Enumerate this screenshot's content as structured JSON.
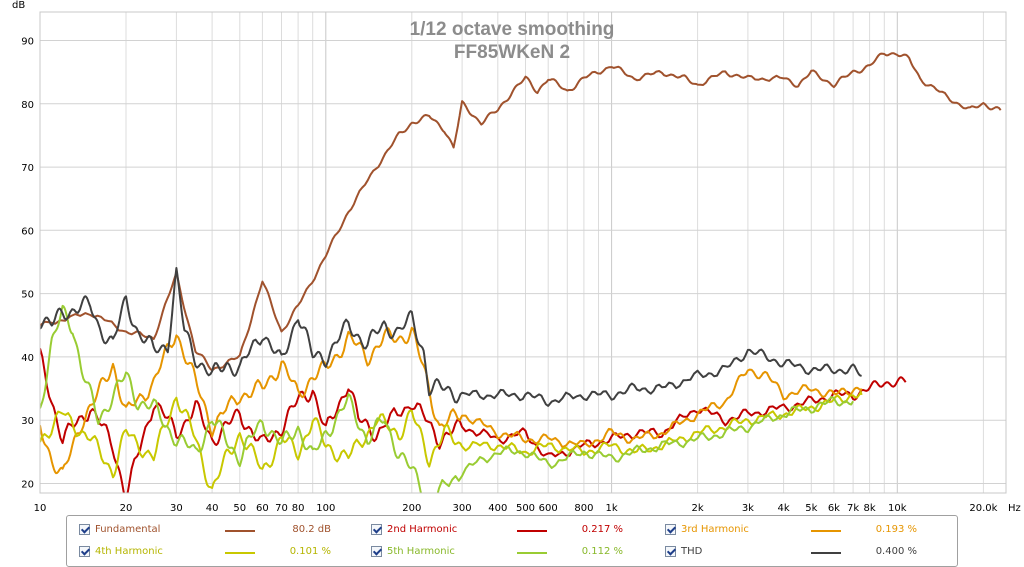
{
  "chart_data": {
    "type": "line",
    "title": "1/12 octave smoothing",
    "subtitle": "FF85WKeN 2",
    "ylabel": "dB",
    "xlabel": "",
    "x_scale": "log",
    "x_unit": "Hz",
    "xlim": [
      10,
      24000
    ],
    "ylim": [
      18.5,
      94.5
    ],
    "grid": true,
    "y_ticks": [
      20,
      30,
      40,
      50,
      60,
      70,
      80,
      90
    ],
    "x_ticks": [
      {
        "v": 10,
        "label": "10"
      },
      {
        "v": 20,
        "label": "20"
      },
      {
        "v": 30,
        "label": "30"
      },
      {
        "v": 40,
        "label": "40"
      },
      {
        "v": 50,
        "label": "50"
      },
      {
        "v": 60,
        "label": "60"
      },
      {
        "v": 70,
        "label": "70"
      },
      {
        "v": 80,
        "label": "80"
      },
      {
        "v": 100,
        "label": "100"
      },
      {
        "v": 200,
        "label": "200"
      },
      {
        "v": 300,
        "label": "300"
      },
      {
        "v": 400,
        "label": "400"
      },
      {
        "v": 500,
        "label": "500"
      },
      {
        "v": 600,
        "label": "600"
      },
      {
        "v": 800,
        "label": "800"
      },
      {
        "v": 1000,
        "label": "1k"
      },
      {
        "v": 2000,
        "label": "2k"
      },
      {
        "v": 3000,
        "label": "3k"
      },
      {
        "v": 4000,
        "label": "4k"
      },
      {
        "v": 5000,
        "label": "5k"
      },
      {
        "v": 6000,
        "label": "6k"
      },
      {
        "v": 7000,
        "label": "7k"
      },
      {
        "v": 8000,
        "label": "8k"
      },
      {
        "v": 10000,
        "label": "10k"
      },
      {
        "v": 20000,
        "label": "20.0k"
      }
    ],
    "x_unit_label": "Hz",
    "legend_position": "bottom",
    "series": [
      {
        "name": "Fundamental",
        "value": "80.2 dB",
        "color": "#a0522d",
        "points": [
          [
            10,
            45
          ],
          [
            15,
            47
          ],
          [
            20,
            44
          ],
          [
            25,
            43
          ],
          [
            30,
            53
          ],
          [
            35,
            41
          ],
          [
            40,
            38
          ],
          [
            50,
            40
          ],
          [
            60,
            52
          ],
          [
            70,
            44
          ],
          [
            80,
            48
          ],
          [
            100,
            56
          ],
          [
            120,
            63
          ],
          [
            150,
            70
          ],
          [
            180,
            75
          ],
          [
            200,
            77
          ],
          [
            230,
            78
          ],
          [
            260,
            76
          ],
          [
            280,
            73
          ],
          [
            300,
            80
          ],
          [
            350,
            77
          ],
          [
            400,
            79
          ],
          [
            450,
            82
          ],
          [
            500,
            84
          ],
          [
            550,
            82
          ],
          [
            600,
            84
          ],
          [
            700,
            82
          ],
          [
            800,
            84
          ],
          [
            1000,
            86
          ],
          [
            1200,
            84
          ],
          [
            1500,
            85
          ],
          [
            1800,
            84
          ],
          [
            2000,
            83
          ],
          [
            2500,
            85
          ],
          [
            3000,
            84
          ],
          [
            4000,
            84
          ],
          [
            4500,
            83
          ],
          [
            5000,
            85
          ],
          [
            6000,
            83
          ],
          [
            7000,
            85
          ],
          [
            8000,
            86
          ],
          [
            9000,
            88
          ],
          [
            10000,
            88
          ],
          [
            11000,
            87
          ],
          [
            12000,
            84
          ],
          [
            15000,
            81
          ],
          [
            18000,
            79
          ],
          [
            20000,
            80
          ],
          [
            23000,
            79
          ]
        ]
      },
      {
        "name": "2nd Harmonic",
        "value": "0.217 %",
        "color": "#c00000",
        "points": [
          [
            10,
            40
          ],
          [
            12,
            27
          ],
          [
            15,
            32
          ],
          [
            18,
            26
          ],
          [
            20,
            18
          ],
          [
            25,
            33
          ],
          [
            30,
            28
          ],
          [
            35,
            32
          ],
          [
            40,
            27
          ],
          [
            45,
            29
          ],
          [
            50,
            31
          ],
          [
            60,
            26
          ],
          [
            70,
            29
          ],
          [
            80,
            33
          ],
          [
            90,
            35
          ],
          [
            100,
            28
          ],
          [
            120,
            36
          ],
          [
            130,
            30
          ],
          [
            150,
            28
          ],
          [
            200,
            33
          ],
          [
            250,
            27
          ],
          [
            300,
            29
          ],
          [
            400,
            27
          ],
          [
            500,
            28
          ],
          [
            600,
            24
          ],
          [
            800,
            26
          ],
          [
            1000,
            27
          ],
          [
            1200,
            28
          ],
          [
            1500,
            28
          ],
          [
            2000,
            32
          ],
          [
            2500,
            30
          ],
          [
            3000,
            31
          ],
          [
            4000,
            32
          ],
          [
            5000,
            33
          ],
          [
            6000,
            34
          ],
          [
            7000,
            34
          ],
          [
            8000,
            35
          ],
          [
            9000,
            36
          ],
          [
            10000,
            36
          ],
          [
            10700,
            36
          ]
        ]
      },
      {
        "name": "3rd Harmonic",
        "value": "0.193 %",
        "color": "#e69500",
        "points": [
          [
            10,
            29
          ],
          [
            11,
            24
          ],
          [
            12,
            21
          ],
          [
            14,
            30
          ],
          [
            16,
            34
          ],
          [
            18,
            39
          ],
          [
            20,
            31
          ],
          [
            25,
            36
          ],
          [
            30,
            44
          ],
          [
            35,
            36
          ],
          [
            40,
            29
          ],
          [
            50,
            34
          ],
          [
            60,
            35
          ],
          [
            70,
            39
          ],
          [
            80,
            34
          ],
          [
            90,
            37
          ],
          [
            100,
            38
          ],
          [
            120,
            43
          ],
          [
            140,
            40
          ],
          [
            160,
            43
          ],
          [
            180,
            43
          ],
          [
            200,
            44
          ],
          [
            220,
            38
          ],
          [
            250,
            29
          ],
          [
            300,
            31
          ],
          [
            400,
            28
          ],
          [
            500,
            27
          ],
          [
            600,
            27
          ],
          [
            800,
            26
          ],
          [
            1000,
            28
          ],
          [
            1200,
            27
          ],
          [
            1500,
            28
          ],
          [
            2000,
            31
          ],
          [
            2500,
            33
          ],
          [
            3000,
            38
          ],
          [
            3500,
            37
          ],
          [
            4000,
            34
          ],
          [
            5000,
            35
          ],
          [
            6000,
            34
          ],
          [
            7000,
            35
          ],
          [
            7500,
            35
          ]
        ]
      },
      {
        "name": "4th Harmonic",
        "value": "0.101 %",
        "color": "#c8c800",
        "points": [
          [
            10,
            27
          ],
          [
            12,
            31
          ],
          [
            15,
            27
          ],
          [
            18,
            22
          ],
          [
            20,
            28
          ],
          [
            25,
            24
          ],
          [
            30,
            34
          ],
          [
            35,
            27
          ],
          [
            40,
            19
          ],
          [
            45,
            24
          ],
          [
            50,
            28
          ],
          [
            60,
            22
          ],
          [
            70,
            27
          ],
          [
            80,
            25
          ],
          [
            90,
            30
          ],
          [
            100,
            26
          ],
          [
            120,
            24
          ],
          [
            150,
            30
          ],
          [
            180,
            28
          ],
          [
            200,
            31
          ],
          [
            230,
            24
          ],
          [
            260,
            28
          ],
          [
            300,
            26
          ],
          [
            400,
            26
          ],
          [
            500,
            25
          ],
          [
            600,
            26
          ],
          [
            800,
            25
          ],
          [
            1000,
            26
          ],
          [
            1200,
            25
          ],
          [
            1500,
            26
          ],
          [
            2000,
            28
          ],
          [
            2500,
            29
          ],
          [
            3000,
            30
          ],
          [
            4000,
            31
          ],
          [
            5000,
            32
          ],
          [
            6000,
            33
          ],
          [
            7000,
            34
          ],
          [
            7500,
            34
          ]
        ]
      },
      {
        "name": "5th Harmonic",
        "value": "0.112 %",
        "color": "#99cc33",
        "points": [
          [
            10,
            32
          ],
          [
            11,
            42
          ],
          [
            12,
            47
          ],
          [
            13,
            45
          ],
          [
            14,
            38
          ],
          [
            16,
            30
          ],
          [
            18,
            34
          ],
          [
            20,
            37
          ],
          [
            22,
            33
          ],
          [
            25,
            32
          ],
          [
            30,
            27
          ],
          [
            35,
            25
          ],
          [
            40,
            30
          ],
          [
            45,
            27
          ],
          [
            50,
            24
          ],
          [
            60,
            30
          ],
          [
            70,
            26
          ],
          [
            80,
            29
          ],
          [
            90,
            24
          ],
          [
            100,
            28
          ],
          [
            120,
            33
          ],
          [
            140,
            27
          ],
          [
            160,
            30
          ],
          [
            180,
            25
          ],
          [
            200,
            22
          ],
          [
            230,
            17
          ],
          [
            300,
            22
          ],
          [
            400,
            25
          ],
          [
            500,
            25
          ],
          [
            600,
            23
          ],
          [
            800,
            25
          ],
          [
            1000,
            24
          ],
          [
            1200,
            25
          ],
          [
            1500,
            26
          ],
          [
            2000,
            27
          ],
          [
            2500,
            28
          ],
          [
            3000,
            29
          ],
          [
            4000,
            31
          ],
          [
            5000,
            32
          ],
          [
            6000,
            33
          ],
          [
            7000,
            33
          ]
        ]
      },
      {
        "name": "THD",
        "value": "0.400 %",
        "color": "#404040",
        "points": [
          [
            10,
            46
          ],
          [
            11,
            45
          ],
          [
            12,
            47
          ],
          [
            14,
            48
          ],
          [
            15,
            48
          ],
          [
            16,
            45
          ],
          [
            18,
            42
          ],
          [
            20,
            49
          ],
          [
            22,
            44
          ],
          [
            25,
            41
          ],
          [
            28,
            42
          ],
          [
            30,
            53
          ],
          [
            32,
            44
          ],
          [
            35,
            40
          ],
          [
            40,
            37
          ],
          [
            45,
            39
          ],
          [
            50,
            38
          ],
          [
            60,
            44
          ],
          [
            70,
            39
          ],
          [
            80,
            47
          ],
          [
            90,
            40
          ],
          [
            100,
            40
          ],
          [
            120,
            45
          ],
          [
            140,
            42
          ],
          [
            160,
            45
          ],
          [
            180,
            44
          ],
          [
            200,
            46
          ],
          [
            220,
            41
          ],
          [
            230,
            35
          ],
          [
            260,
            35
          ],
          [
            300,
            34
          ],
          [
            400,
            34
          ],
          [
            500,
            34
          ],
          [
            600,
            33
          ],
          [
            800,
            34
          ],
          [
            1000,
            34
          ],
          [
            1200,
            35
          ],
          [
            1500,
            35
          ],
          [
            2000,
            37
          ],
          [
            2500,
            38
          ],
          [
            3000,
            41
          ],
          [
            3500,
            40
          ],
          [
            4000,
            39
          ],
          [
            5000,
            38
          ],
          [
            6000,
            38
          ],
          [
            7000,
            38
          ],
          [
            7500,
            37
          ]
        ]
      }
    ]
  }
}
